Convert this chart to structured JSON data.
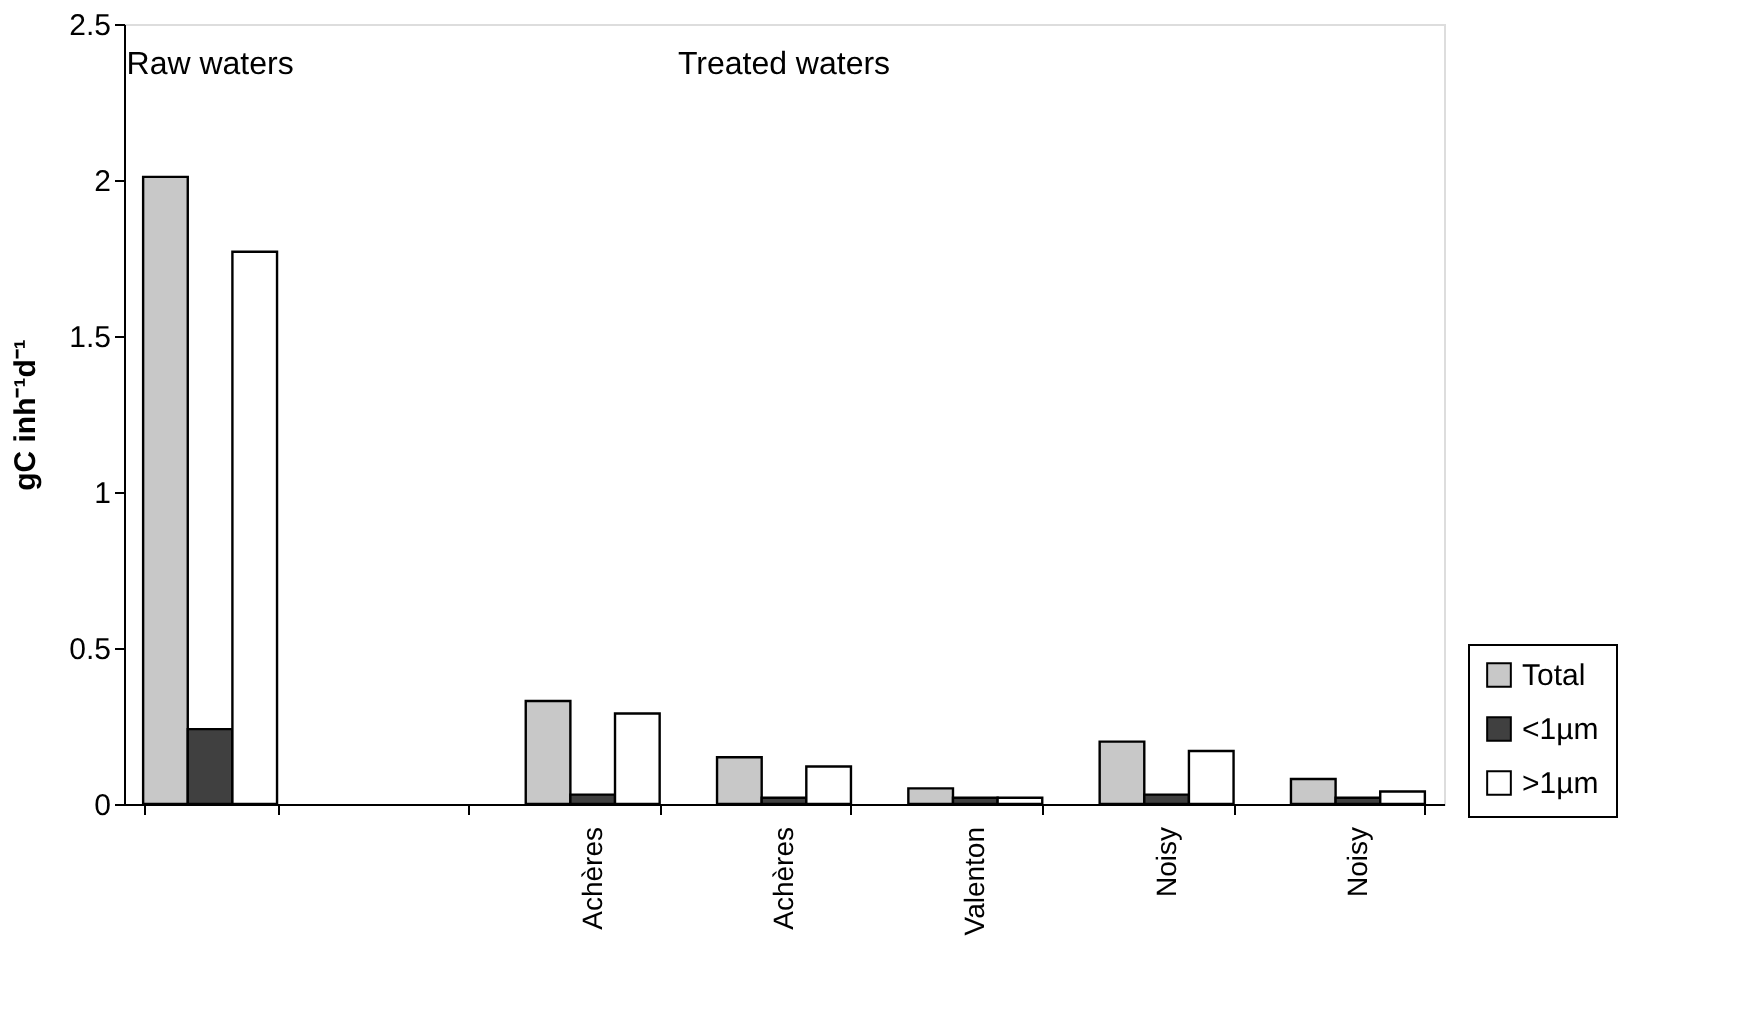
{
  "chart_data": {
    "type": "bar",
    "ylabel": "gC inh⁻¹d⁻¹",
    "categories": [
      null,
      null,
      "Achères",
      "Achères",
      "Valenton",
      "Noisy",
      "Noisy"
    ],
    "series": [
      {
        "name": "Total",
        "color": "#c8c8c8",
        "values": [
          2.01,
          null,
          0.33,
          0.15,
          0.05,
          0.2,
          0.08
        ]
      },
      {
        "name": "<1µm",
        "color": "#404040",
        "values": [
          0.24,
          null,
          0.03,
          0.02,
          0.02,
          0.03,
          0.02
        ]
      },
      {
        "name": ">1µm",
        "color": "#ffffff",
        "values": [
          1.77,
          null,
          0.29,
          0.12,
          0.02,
          0.17,
          0.04
        ]
      }
    ],
    "ylim": [
      0,
      2.5
    ],
    "yticks": [
      0,
      0.5,
      1,
      1.5,
      2,
      2.5
    ],
    "grid": false,
    "legend": "bottom right",
    "annotations": [
      "Raw waters",
      "Treated waters"
    ]
  }
}
